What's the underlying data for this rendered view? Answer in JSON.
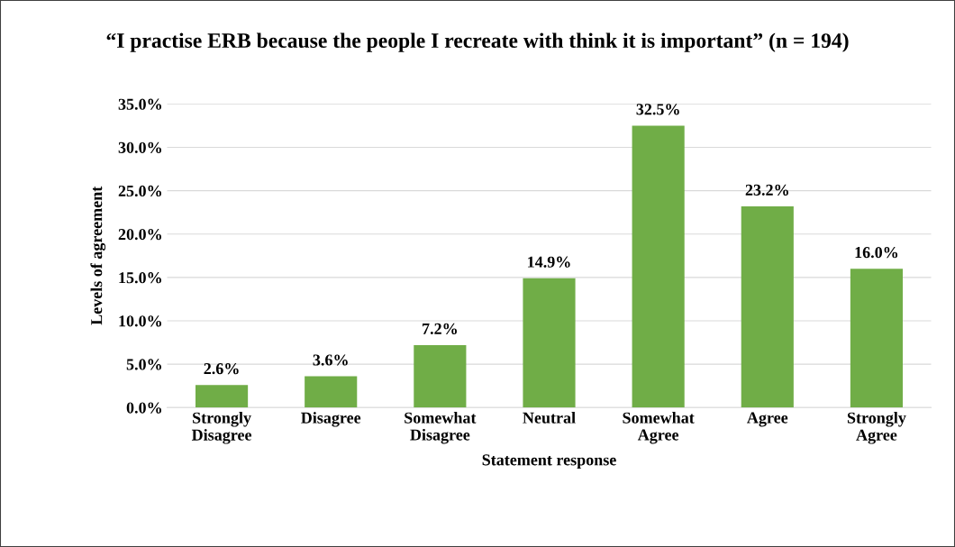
{
  "chart_data": {
    "type": "bar",
    "title": "“I practise ERB because the people I recreate with think it is important” (n = 194)",
    "xlabel": "Statement response",
    "ylabel": "Levels of agreement",
    "categories": [
      "Strongly Disagree",
      "Disagree",
      "Somewhat Disagree",
      "Neutral",
      "Somewhat Agree",
      "Agree",
      "Strongly Agree"
    ],
    "values": [
      2.6,
      3.6,
      7.2,
      14.9,
      32.5,
      23.2,
      16.0
    ],
    "value_labels": [
      "2.6%",
      "3.6%",
      "7.2%",
      "14.9%",
      "32.5%",
      "23.2%",
      "16.0%"
    ],
    "color": "#70ad47",
    "ylim": [
      0,
      35
    ],
    "yticks": [
      {
        "value": 0,
        "label": "0.0%"
      },
      {
        "value": 5,
        "label": "5.0%"
      },
      {
        "value": 10,
        "label": "10.0%"
      },
      {
        "value": 15,
        "label": "15.0%"
      },
      {
        "value": 20,
        "label": "20.0%"
      },
      {
        "value": 25,
        "label": "25.0%"
      },
      {
        "value": 30,
        "label": "30.0%"
      },
      {
        "value": 35,
        "label": "35.0%"
      }
    ],
    "grid": "y",
    "legend": false
  }
}
